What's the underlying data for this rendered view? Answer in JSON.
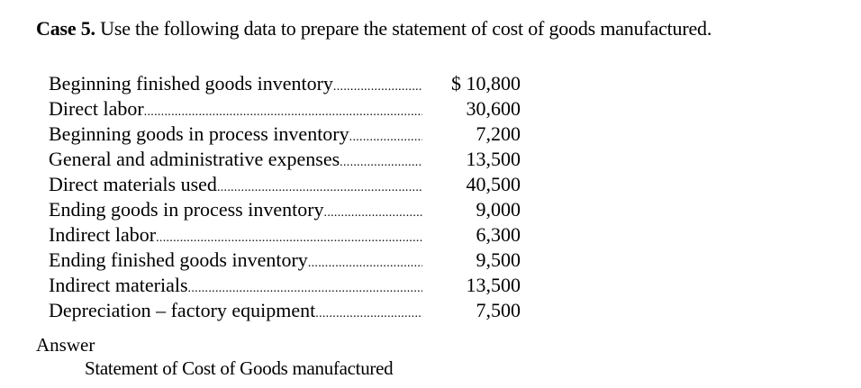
{
  "case": {
    "label": "Case 5.",
    "instruction": "Use the following data to prepare the statement of cost of goods manufactured."
  },
  "items": [
    {
      "label": "Beginning finished goods inventory",
      "amount": "$ 10,800"
    },
    {
      "label": "Direct labor",
      "amount": "30,600"
    },
    {
      "label": "Beginning goods in process inventory",
      "amount": "7,200"
    },
    {
      "label": "General and administrative expenses",
      "amount": "13,500"
    },
    {
      "label": "Direct materials used",
      "amount": "40,500"
    },
    {
      "label": "Ending goods in process inventory",
      "amount": "9,000"
    },
    {
      "label": "Indirect labor",
      "amount": "6,300"
    },
    {
      "label": "Ending finished goods inventory",
      "amount": "9,500"
    },
    {
      "label": "Indirect materials",
      "amount": "13,500"
    },
    {
      "label": "Depreciation – factory equipment",
      "amount": "7,500"
    }
  ],
  "answer": {
    "heading": "Answer",
    "statement_title": "Statement of Cost of Goods manufactured"
  }
}
